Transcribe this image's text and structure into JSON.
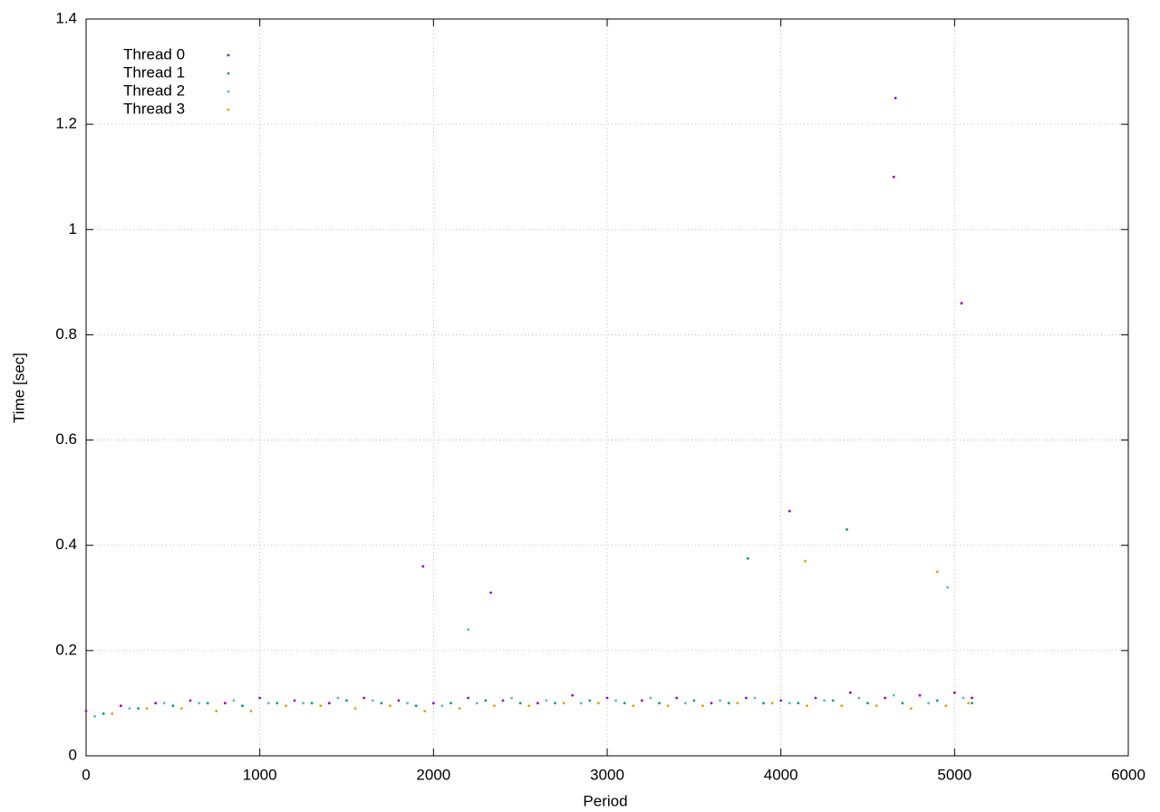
{
  "chart_data": {
    "type": "scatter",
    "x_label": "Period",
    "y_label": "Time [sec]",
    "xlim": [
      0,
      6000
    ],
    "ylim": [
      0,
      1.4
    ],
    "xticks": [
      0,
      1000,
      2000,
      3000,
      4000,
      5000,
      6000
    ],
    "yticks": [
      0,
      0.2,
      0.4,
      0.6,
      0.8,
      1,
      1.2,
      1.4
    ],
    "grid": true,
    "legend": "top-left",
    "series": [
      {
        "name": "Thread 0",
        "color": "#9400d3",
        "x": [
          0,
          200,
          400,
          600,
          800,
          1000,
          1200,
          1400,
          1600,
          1800,
          2000,
          2200,
          2400,
          2600,
          2800,
          3000,
          3200,
          3400,
          3600,
          3800,
          4000,
          4200,
          4400,
          4600,
          4800,
          5000,
          5100,
          4660,
          4650,
          5040,
          4050,
          1940,
          2330
        ],
        "values": [
          0.085,
          0.095,
          0.1,
          0.105,
          0.1,
          0.11,
          0.105,
          0.1,
          0.11,
          0.105,
          0.1,
          0.11,
          0.105,
          0.1,
          0.115,
          0.11,
          0.105,
          0.11,
          0.1,
          0.11,
          0.105,
          0.11,
          0.12,
          0.11,
          0.115,
          0.12,
          0.11,
          1.25,
          1.1,
          0.86,
          0.465,
          0.36,
          0.31
        ]
      },
      {
        "name": "Thread 1",
        "color": "#009e73",
        "x": [
          100,
          300,
          500,
          700,
          900,
          1100,
          1300,
          1500,
          1700,
          1900,
          2100,
          2300,
          2500,
          2700,
          2900,
          3100,
          3300,
          3500,
          3700,
          3900,
          4100,
          4300,
          4500,
          4700,
          4900,
          5100,
          3810,
          4380
        ],
        "values": [
          0.08,
          0.09,
          0.095,
          0.1,
          0.095,
          0.1,
          0.1,
          0.105,
          0.1,
          0.095,
          0.1,
          0.105,
          0.1,
          0.1,
          0.105,
          0.1,
          0.1,
          0.105,
          0.1,
          0.1,
          0.1,
          0.105,
          0.1,
          0.1,
          0.105,
          0.1,
          0.375,
          0.43
        ]
      },
      {
        "name": "Thread 2",
        "color": "#56b4e9",
        "x": [
          50,
          250,
          450,
          650,
          850,
          1050,
          1250,
          1450,
          1650,
          1850,
          2050,
          2250,
          2450,
          2650,
          2850,
          3050,
          3250,
          3450,
          3650,
          3850,
          4050,
          4250,
          4450,
          4650,
          4850,
          5050,
          4960,
          2200
        ],
        "values": [
          0.075,
          0.09,
          0.1,
          0.1,
          0.105,
          0.1,
          0.1,
          0.11,
          0.105,
          0.1,
          0.095,
          0.1,
          0.11,
          0.105,
          0.1,
          0.105,
          0.11,
          0.1,
          0.105,
          0.11,
          0.1,
          0.105,
          0.11,
          0.115,
          0.1,
          0.11,
          0.32,
          0.24
        ]
      },
      {
        "name": "Thread 3",
        "color": "#e69f00",
        "x": [
          150,
          350,
          550,
          750,
          950,
          1150,
          1350,
          1550,
          1750,
          1950,
          2150,
          2350,
          2550,
          2750,
          2950,
          3150,
          3350,
          3550,
          3750,
          3950,
          4150,
          4350,
          4550,
          4750,
          4950,
          5080,
          4140,
          4900
        ],
        "values": [
          0.08,
          0.09,
          0.09,
          0.085,
          0.085,
          0.095,
          0.095,
          0.09,
          0.095,
          0.085,
          0.09,
          0.095,
          0.095,
          0.1,
          0.1,
          0.095,
          0.095,
          0.095,
          0.1,
          0.1,
          0.095,
          0.095,
          0.095,
          0.09,
          0.095,
          0.1,
          0.37,
          0.35
        ]
      }
    ]
  }
}
